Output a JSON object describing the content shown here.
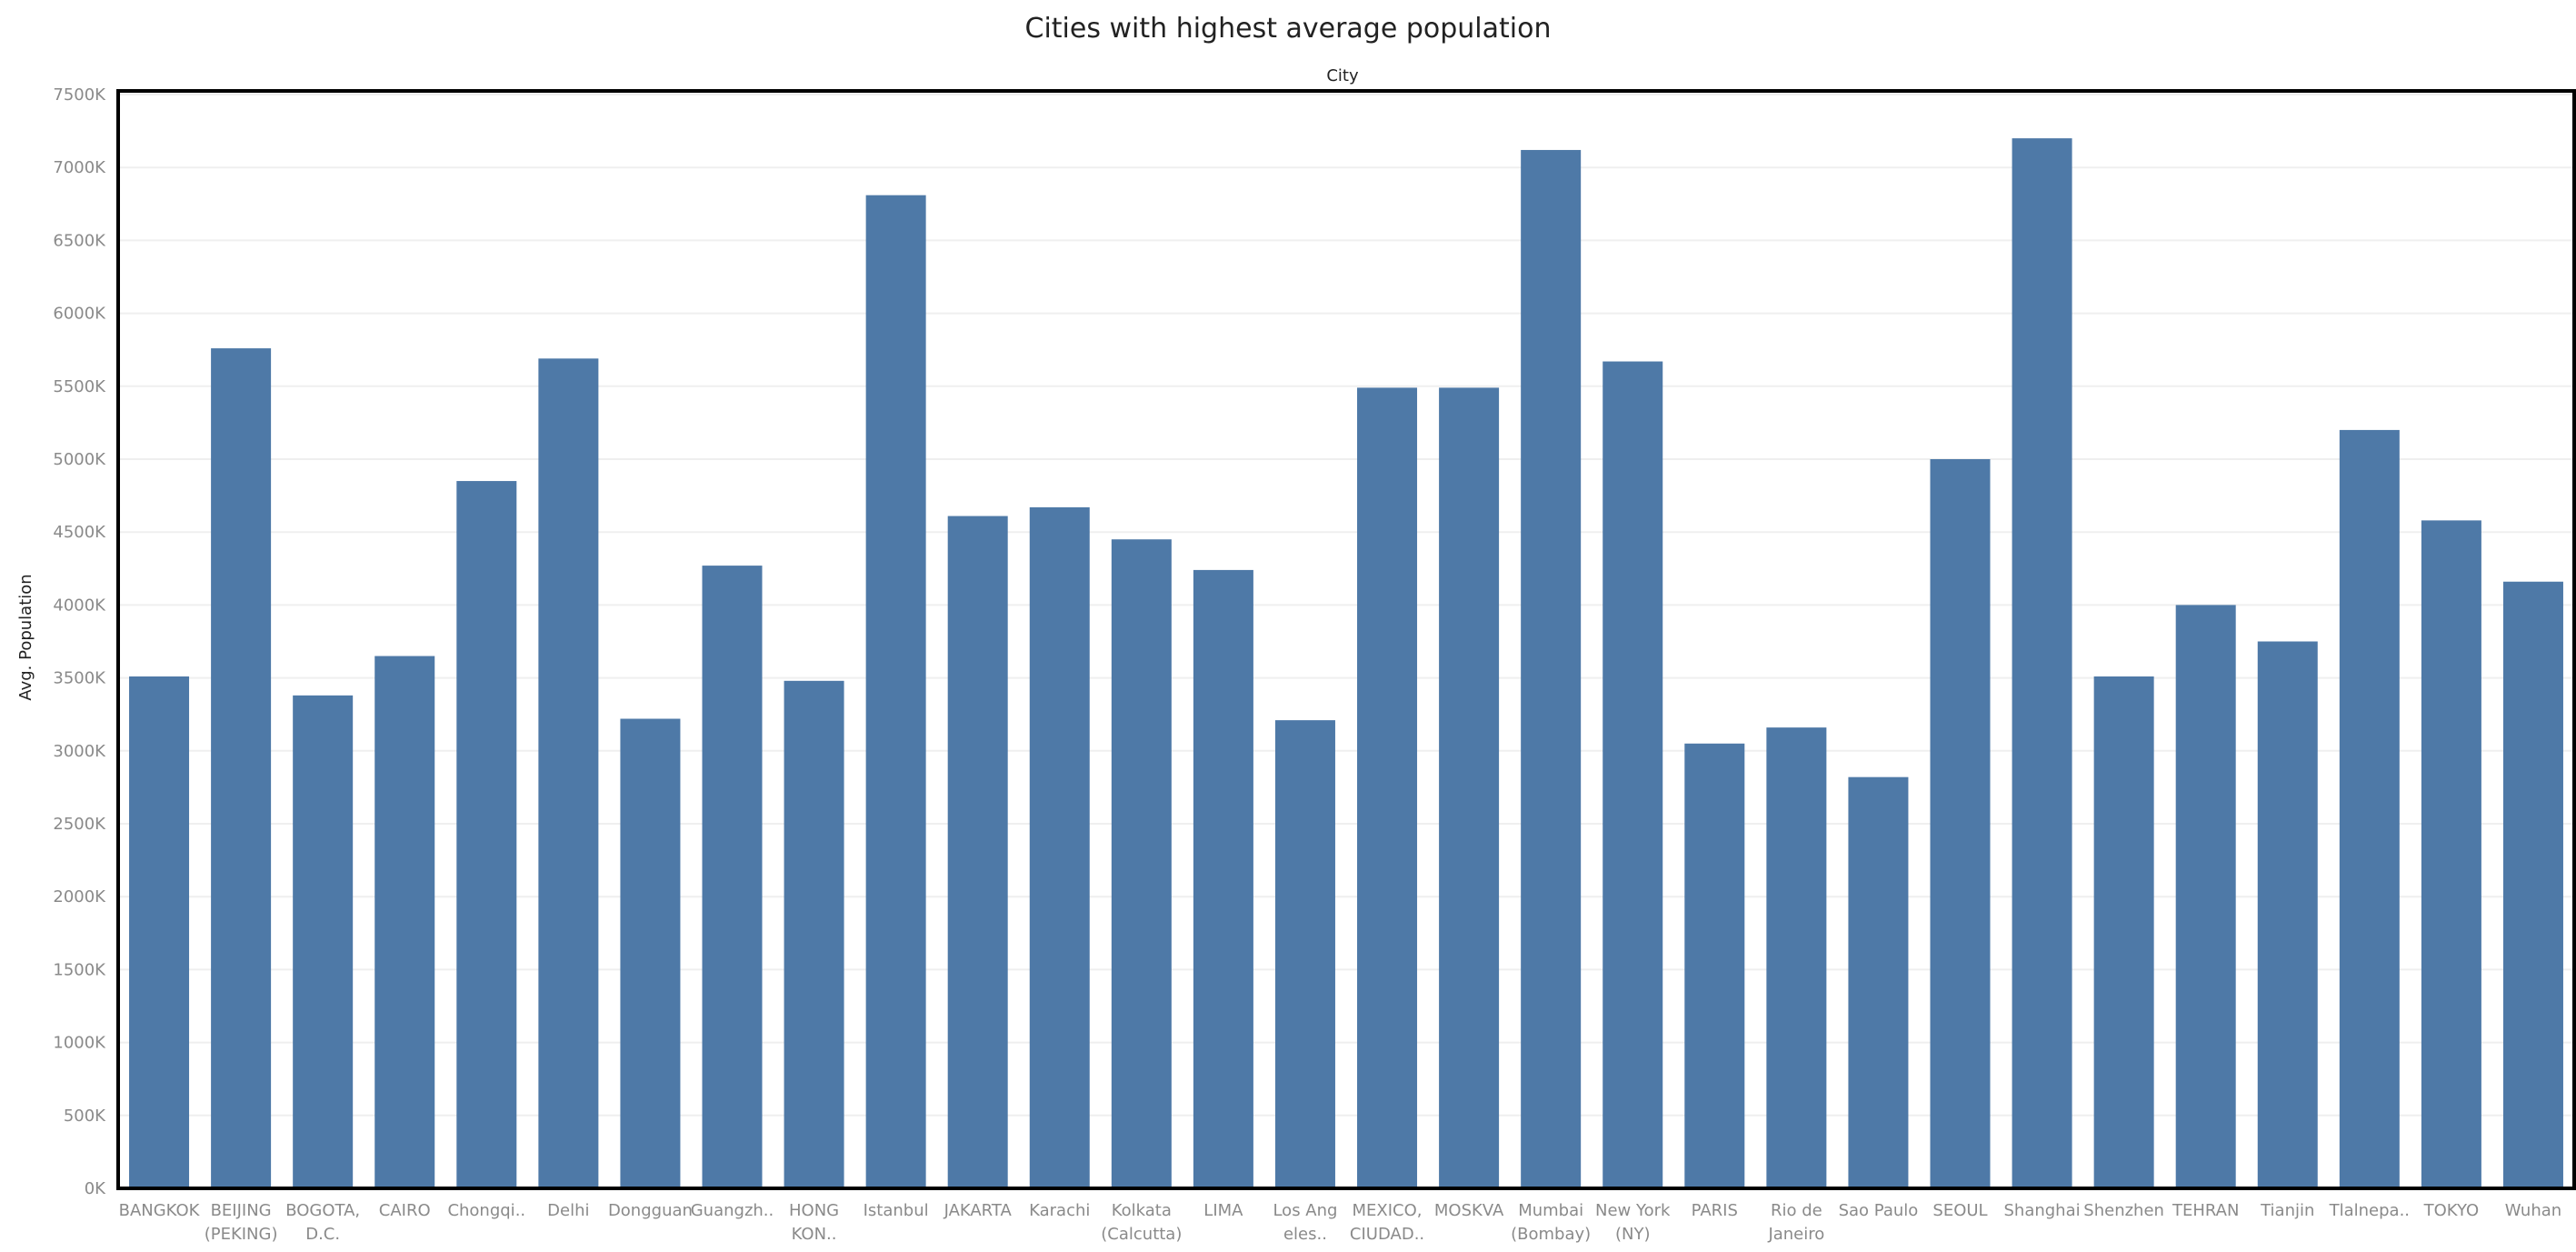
{
  "chart_data": {
    "type": "bar",
    "title": "Cities with highest average population",
    "header": "City",
    "xlabel": "",
    "ylabel": "Avg. Population",
    "ylim": [
      0,
      7500000
    ],
    "y_ticks": [
      "0K",
      "500K",
      "1000K",
      "1500K",
      "2000K",
      "2500K",
      "3000K",
      "3500K",
      "4000K",
      "4500K",
      "5000K",
      "5500K",
      "6000K",
      "6500K",
      "7000K",
      "7500K"
    ],
    "y_tick_values": [
      0,
      500000,
      1000000,
      1500000,
      2000000,
      2500000,
      3000000,
      3500000,
      4000000,
      4500000,
      5000000,
      5500000,
      6000000,
      6500000,
      7000000,
      7500000
    ],
    "grid": true,
    "bar_color": "#4e79a7",
    "categories": [
      [
        "BANGKOK"
      ],
      [
        "BEIJING",
        "(PEKING)"
      ],
      [
        "BOGOTA,",
        "D.C."
      ],
      [
        "CAIRO"
      ],
      [
        "Chongqi.."
      ],
      [
        "Delhi"
      ],
      [
        "Dongguan"
      ],
      [
        "Guangzh.."
      ],
      [
        "HONG",
        "KON.."
      ],
      [
        "Istanbul"
      ],
      [
        "JAKARTA"
      ],
      [
        "Karachi"
      ],
      [
        "Kolkata",
        "(Calcutta)"
      ],
      [
        "LIMA"
      ],
      [
        "Los Ang",
        "eles.."
      ],
      [
        "MEXICO,",
        "CIUDAD.."
      ],
      [
        "MOSKVA"
      ],
      [
        "Mumbai",
        "(Bombay)"
      ],
      [
        "New York",
        "(NY)"
      ],
      [
        "PARIS"
      ],
      [
        "Rio de",
        "Janeiro"
      ],
      [
        "Sao Paulo"
      ],
      [
        "SEOUL"
      ],
      [
        "Shanghai"
      ],
      [
        "Shenzhen"
      ],
      [
        "TEHRAN"
      ],
      [
        "Tianjin"
      ],
      [
        "Tlalnepa.."
      ],
      [
        "TOKYO"
      ],
      [
        "Wuhan"
      ]
    ],
    "values": [
      3510000,
      5760000,
      3380000,
      3650000,
      4850000,
      5690000,
      3220000,
      4270000,
      3480000,
      6810000,
      4610000,
      4670000,
      4450000,
      4240000,
      3210000,
      5490000,
      5490000,
      7120000,
      5670000,
      3050000,
      3160000,
      2820000,
      5000000,
      7200000,
      3510000,
      4000000,
      3750000,
      5200000,
      4580000,
      4160000
    ]
  }
}
